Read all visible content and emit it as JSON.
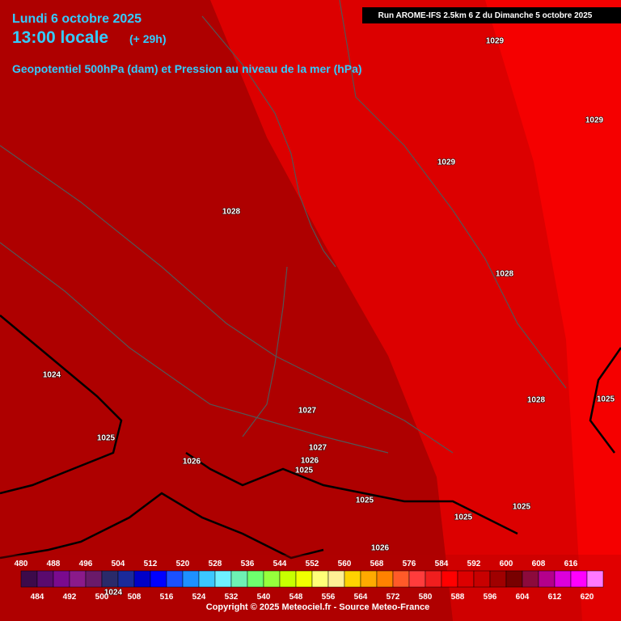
{
  "header": {
    "date": "Lundi 6 octobre 2025",
    "time": "13:00 locale",
    "lead": "(+ 29h)",
    "subtitle": "Geopotentiel 500hPa (dam) et Pression au niveau de la mer (hPa)"
  },
  "run": "Run AROME-IFS 2.5km 6 Z du Dimanche 5 octobre 2025",
  "isobar_labels": [
    "1029",
    "1029",
    "1029",
    "1028",
    "1028",
    "1024",
    "1028",
    "1025",
    "1027",
    "1025",
    "1027",
    "1026",
    "1026",
    "1025",
    "1025",
    "1025",
    "1025",
    "1026",
    "1024"
  ],
  "legend": {
    "top_labels": [
      "480",
      "488",
      "496",
      "504",
      "512",
      "520",
      "528",
      "536",
      "544",
      "552",
      "560",
      "568",
      "576",
      "584",
      "592",
      "600",
      "608",
      "616"
    ],
    "bottom_labels": [
      "484",
      "492",
      "500",
      "508",
      "516",
      "524",
      "532",
      "540",
      "548",
      "556",
      "564",
      "572",
      "580",
      "588",
      "596",
      "604",
      "612",
      "620"
    ],
    "colors": [
      "#3c0a4a",
      "#5a0a6e",
      "#7a0a8e",
      "#8a1a8a",
      "#6a1a6a",
      "#2a2a6a",
      "#1a2a9a",
      "#0000c8",
      "#0000ff",
      "#1a50ff",
      "#1e90ff",
      "#3cc8ff",
      "#6ef0ff",
      "#6ef0b4",
      "#6eff6e",
      "#96ff3c",
      "#c8ff00",
      "#f0ff00",
      "#ffff78",
      "#fff096",
      "#ffd200",
      "#ffaa00",
      "#ff8200",
      "#ff5a28",
      "#ff3c3c",
      "#f01e1e",
      "#ff0000",
      "#dc0000",
      "#c80000",
      "#a00000",
      "#780000",
      "#8c0a3c",
      "#b4008c",
      "#dc00dc",
      "#ff00ff",
      "#ff78ff"
    ]
  },
  "copyright": "Copyright © 2025 Meteociel.fr - Source Meteo-France"
}
